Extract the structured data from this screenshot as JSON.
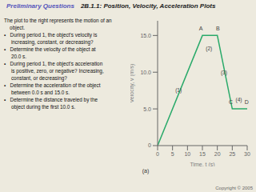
{
  "chart_data": {
    "type": "line",
    "title": "Preliminary Questions",
    "subtitle": "2B.1.1: Position, Velocity, Acceleration Plots",
    "text": "The plot to the right represents the motion of an\n    object.\n▪   During period 1, the object's velocity is\n     increasing, constant, or decreasing?\n▪   Determine the velocity of the object at\n     20.0 s.\n▪   During period 1, the object's acceleration\n     is positive, zero, or negative? Increasing,\n     constant, or decreasing?\n▪   Determine the acceleration of the object\n     between 0.0 s and 15.0 s.\n▪   Determine the distance traveled by the\n     object during the first 10.0 s.",
    "x": [
      0,
      15,
      20,
      25,
      30
    ],
    "values": [
      0,
      15,
      15,
      5,
      5
    ],
    "color": "#2aaa6a",
    "x_label": "Time, t (s)",
    "y_label": "Velocity, v (m/s)",
    "caption": "(a)",
    "footer": "Copyright © 2005",
    "segment_labels": [
      {
        "text": "(1)",
        "x": 7,
        "y": 7.5
      },
      {
        "text": "(2)",
        "x": 17.2,
        "y": 13.2
      },
      {
        "text": "(3)",
        "x": 22.2,
        "y": 10.0
      },
      {
        "text": "(4)",
        "x": 27.2,
        "y": 6.2
      }
    ],
    "point_labels": [
      {
        "text": "A",
        "x": 14.5,
        "y": 15.6
      },
      {
        "text": "B",
        "x": 20.2,
        "y": 15.6
      },
      {
        "text": "C",
        "x": 24.5,
        "y": 5.6
      },
      {
        "text": "D",
        "x": 29.8,
        "y": 5.6
      }
    ],
    "xlim": [
      0,
      30
    ],
    "ylim": [
      0,
      17
    ],
    "xticks": [
      0,
      5,
      10,
      15,
      20,
      25,
      30
    ],
    "yticks": [
      0,
      {
        "value": 5.0,
        "label": "5.0"
      },
      {
        "value": 10.0,
        "label": "10.0"
      },
      {
        "value": 15.0,
        "label": "15.0"
      }
    ],
    "grid": false
  }
}
